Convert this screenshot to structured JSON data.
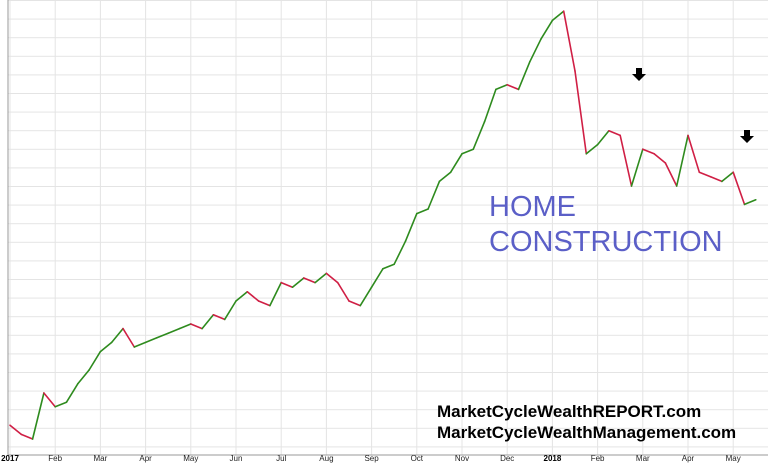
{
  "chart_data": {
    "type": "line",
    "categories": [
      "2017",
      null,
      null,
      null,
      "Feb",
      null,
      null,
      null,
      "Mar",
      null,
      null,
      null,
      "Apr",
      null,
      null,
      null,
      "May",
      null,
      null,
      null,
      "Jun",
      null,
      null,
      null,
      "Jul",
      null,
      null,
      null,
      "Aug",
      null,
      null,
      null,
      "Sep",
      null,
      null,
      null,
      "Oct",
      null,
      null,
      null,
      "Nov",
      null,
      null,
      null,
      "Dec",
      null,
      null,
      null,
      "2018",
      null,
      null,
      null,
      "Feb",
      null,
      null,
      null,
      "Mar",
      null,
      null,
      null,
      "Apr",
      null,
      null,
      null,
      "May",
      null,
      null
    ],
    "values": [
      8,
      6,
      5,
      15,
      12,
      13,
      17,
      20,
      24,
      26,
      29,
      25,
      26,
      27,
      28,
      29,
      30,
      29,
      32,
      31,
      35,
      37,
      35,
      34,
      39,
      38,
      40,
      39,
      41,
      39,
      35,
      34,
      38,
      42,
      43,
      48,
      54,
      55,
      61,
      63,
      67,
      68,
      74,
      81,
      82,
      81,
      87,
      92,
      96,
      98,
      85,
      67,
      69,
      72,
      71,
      60,
      68,
      67,
      65,
      60,
      71,
      63,
      62,
      61,
      63,
      56,
      57
    ],
    "ylim": [
      0,
      100
    ],
    "up_color": "#2e8b1e",
    "down_color": "#d01f45",
    "annotations": [
      "HOME",
      "CONSTRUCTION"
    ],
    "footer": [
      "MarketCycleWealthREPORT.com",
      "MarketCycleWealthManagement.com"
    ]
  }
}
